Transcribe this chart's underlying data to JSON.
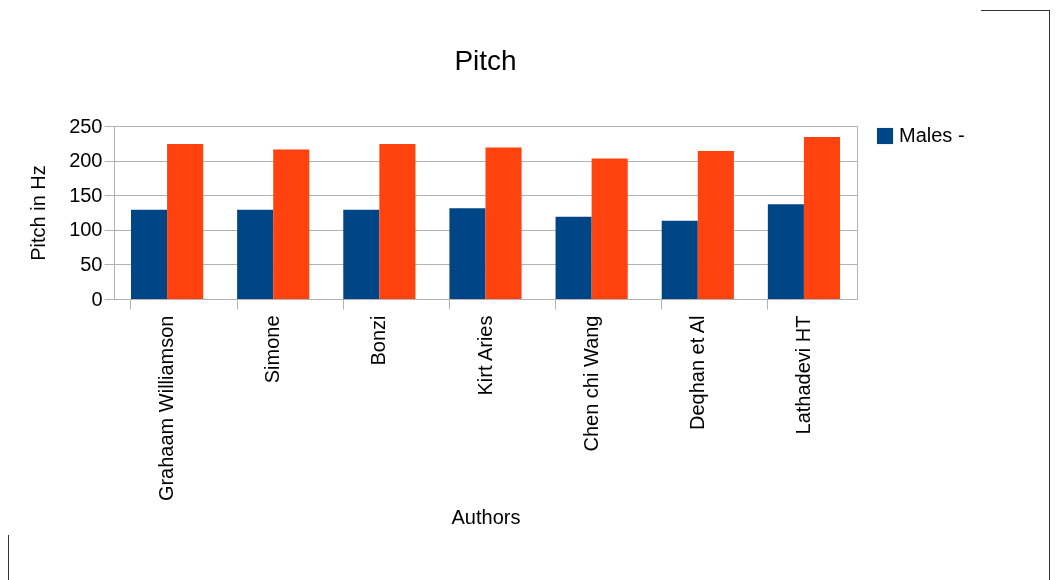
{
  "chart_data": {
    "type": "bar",
    "title": "Pitch",
    "xlabel": "Authors",
    "ylabel": "Pitch in Hz",
    "categories": [
      "Grahaam Williamson",
      "Simone",
      "Bonzi",
      "Kirt Aries",
      "Chen chi  Wang",
      "Deqhan et Al",
      "Lathadevi HT"
    ],
    "series": [
      {
        "name": "Males  -",
        "color": "#004586",
        "values": [
          129,
          129,
          129,
          131,
          119,
          113,
          137
        ]
      },
      {
        "color": "#ff420e",
        "values": [
          224,
          216,
          224,
          219,
          203,
          214,
          234
        ]
      }
    ],
    "ylim": [
      0,
      250
    ],
    "yticks": [
      0,
      50,
      100,
      150,
      200,
      250
    ],
    "grid": "y",
    "legend": "right"
  }
}
